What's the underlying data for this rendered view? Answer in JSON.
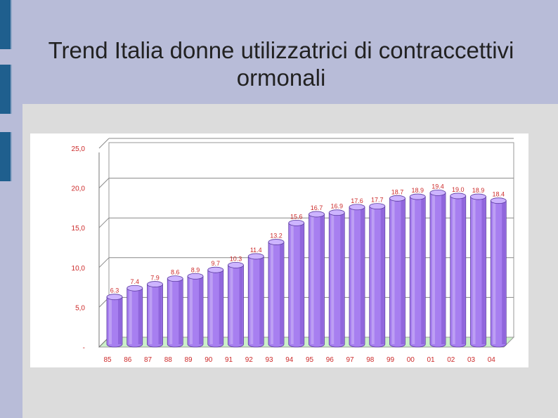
{
  "slide": {
    "title": "Trend Italia donne utilizzatrici di contraccettivi ormonali"
  },
  "colors": {
    "background": "#b8bcd8",
    "sidebar": "#1f5f8e",
    "panel": "#dcdcdc",
    "bar_face": "#a77ff0",
    "bar_top": "#cdb4ff",
    "bar_shade": "#7d52cc",
    "value_label": "#cc2a2a",
    "axis_text": "#cc2a2a",
    "floor": "#ccf0c8"
  },
  "chart_data": {
    "type": "bar",
    "title": "",
    "xlabel": "",
    "ylabel": "",
    "categories": [
      "85",
      "86",
      "87",
      "88",
      "89",
      "90",
      "91",
      "92",
      "93",
      "94",
      "95",
      "96",
      "97",
      "98",
      "99",
      "00",
      "01",
      "02",
      "03",
      "04"
    ],
    "values": [
      6.3,
      7.4,
      7.9,
      8.6,
      8.9,
      9.7,
      10.3,
      11.4,
      13.2,
      15.6,
      16.7,
      16.9,
      17.6,
      17.7,
      18.7,
      18.9,
      19.4,
      19.0,
      18.9,
      18.4
    ],
    "value_labels": [
      "6.3",
      "7.4",
      "7.9",
      "8.6",
      "8.9",
      "9.7",
      "10.3",
      "11.4",
      "13.2",
      "15.6",
      "16.7",
      "16.9",
      "17.6",
      "17.7",
      "18.7",
      "18.9",
      "19.4",
      "19.0",
      "18.9",
      "18.4"
    ],
    "ytick_labels": [
      "-",
      "5,0",
      "10,0",
      "15,0",
      "20,0",
      "25,0"
    ],
    "yticks": [
      0,
      5,
      10,
      15,
      20,
      25
    ],
    "ylim": [
      0,
      25
    ],
    "grid": true,
    "legend": "none",
    "style": "3d-cylinder"
  }
}
